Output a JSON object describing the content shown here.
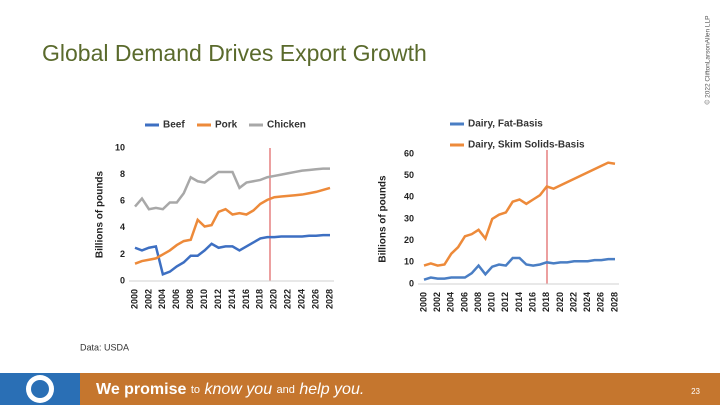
{
  "slide": {
    "title": "Global Demand Drives Export Growth",
    "copyright": "© 2022 CliftonLarsonAllen LLP",
    "source": "Data: USDA",
    "tagline": [
      "We promise",
      "to",
      "know you",
      "and",
      "help you."
    ],
    "page": "23"
  },
  "chart_data": [
    {
      "type": "line",
      "ylabel": "Billions of pounds",
      "x": [
        2000,
        2001,
        2002,
        2003,
        2004,
        2005,
        2006,
        2007,
        2008,
        2009,
        2010,
        2011,
        2012,
        2013,
        2014,
        2015,
        2016,
        2017,
        2018,
        2019,
        2020,
        2021,
        2022,
        2023,
        2024,
        2025,
        2026,
        2027,
        2028
      ],
      "xlim": [
        2000,
        2028
      ],
      "xticks": [
        2000,
        2002,
        2004,
        2006,
        2008,
        2010,
        2012,
        2014,
        2016,
        2018,
        2020,
        2022,
        2024,
        2026,
        2028
      ],
      "ylim": [
        0,
        10
      ],
      "yticks": [
        0,
        2,
        4,
        6,
        8,
        10
      ],
      "series": [
        {
          "name": "Beef",
          "color": "#3d6fc2",
          "values": [
            2.5,
            2.3,
            2.5,
            2.6,
            0.5,
            0.7,
            1.1,
            1.4,
            1.9,
            1.9,
            2.3,
            2.8,
            2.5,
            2.6,
            2.6,
            2.3,
            2.6,
            2.9,
            3.2,
            3.3,
            3.3,
            3.35,
            3.35,
            3.35,
            3.35,
            3.4,
            3.4,
            3.45,
            3.45
          ]
        },
        {
          "name": "Pork",
          "color": "#ed8a3a",
          "values": [
            1.3,
            1.5,
            1.6,
            1.7,
            2.0,
            2.3,
            2.7,
            3.0,
            3.1,
            4.6,
            4.1,
            4.2,
            5.2,
            5.4,
            5.0,
            5.1,
            5.0,
            5.3,
            5.8,
            6.1,
            6.3,
            6.35,
            6.4,
            6.45,
            6.5,
            6.6,
            6.7,
            6.85,
            7.0
          ]
        },
        {
          "name": "Chicken",
          "color": "#a8a8a8",
          "values": [
            5.6,
            6.2,
            5.4,
            5.5,
            5.4,
            5.9,
            5.9,
            6.6,
            7.8,
            7.5,
            7.4,
            7.8,
            8.2,
            8.2,
            8.2,
            7.0,
            7.4,
            7.5,
            7.6,
            7.8,
            7.9,
            8.0,
            8.1,
            8.2,
            8.3,
            8.35,
            8.4,
            8.45,
            8.45
          ]
        }
      ]
    },
    {
      "type": "line",
      "ylabel": "Billions of pounds",
      "x": [
        2000,
        2001,
        2002,
        2003,
        2004,
        2005,
        2006,
        2007,
        2008,
        2009,
        2010,
        2011,
        2012,
        2013,
        2014,
        2015,
        2016,
        2017,
        2018,
        2019,
        2020,
        2021,
        2022,
        2023,
        2024,
        2025,
        2026,
        2027,
        2028
      ],
      "xlim": [
        2000,
        2028
      ],
      "xticks": [
        2000,
        2002,
        2004,
        2006,
        2008,
        2010,
        2012,
        2014,
        2016,
        2018,
        2020,
        2022,
        2024,
        2026,
        2028
      ],
      "ylim": [
        0,
        60
      ],
      "yticks": [
        0,
        10,
        20,
        30,
        40,
        50,
        60
      ],
      "series": [
        {
          "name": "Dairy, Fat-Basis",
          "color": "#4a7ec4",
          "values": [
            2,
            3,
            2.5,
            2.5,
            3,
            3,
            3,
            5,
            8.5,
            4.5,
            8,
            9,
            8.5,
            12,
            12,
            9,
            8.5,
            9,
            10,
            9.5,
            10,
            10,
            10.5,
            10.5,
            10.5,
            11,
            11,
            11.5,
            11.5
          ]
        },
        {
          "name": "Dairy, Skim Solids-Basis",
          "color": "#ed8a3a",
          "values": [
            8.5,
            9.5,
            8.5,
            9,
            14,
            17,
            22,
            23,
            25,
            21,
            30,
            32,
            33,
            38,
            39,
            37,
            39,
            41,
            45,
            44,
            45.5,
            47,
            48.5,
            50,
            51.5,
            53,
            54.5,
            56,
            55.5
          ]
        }
      ]
    }
  ]
}
